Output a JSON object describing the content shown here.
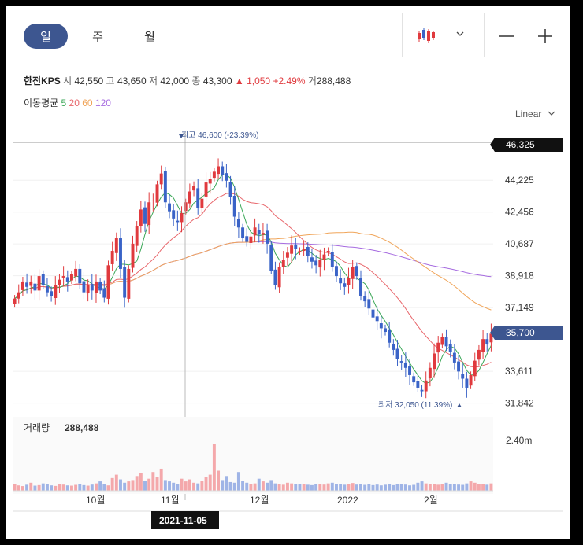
{
  "tabs": [
    {
      "label": "일",
      "active": true
    },
    {
      "label": "주",
      "active": false
    },
    {
      "label": "월",
      "active": false
    }
  ],
  "toolbar": {
    "chart_type_icon": "candlestick-icon",
    "dropdown_icon": "chevron-down-icon",
    "zoom_out": "—",
    "zoom_in": "+"
  },
  "quote": {
    "name": "한전KPS",
    "open_label": "시",
    "open": "42,550",
    "high_label": "고",
    "high": "43,650",
    "low_label": "저",
    "low": "42,000",
    "close_label": "종",
    "close": "43,300",
    "change": "▲ 1,050",
    "change_pct": "+2.49%",
    "volume_label": "거",
    "volume": "288,488"
  },
  "ma_legend": {
    "label": "이동평균",
    "items": [
      {
        "period": "5",
        "color": "#3aa757"
      },
      {
        "period": "20",
        "color": "#e8676c"
      },
      {
        "period": "60",
        "color": "#f0a55a"
      },
      {
        "period": "120",
        "color": "#a66be0"
      }
    ]
  },
  "scale_selector": "Linear",
  "chart_data": {
    "type": "candlestick",
    "y_ticks": [
      "44,225",
      "42,456",
      "40,687",
      "38,918",
      "37,149",
      "33,611",
      "31,842"
    ],
    "ylim": [
      31300,
      46900
    ],
    "current_price_label": "46,325",
    "last_price_label": "35,700",
    "x_labels": [
      "10월",
      "11월",
      "12월",
      "2022",
      "2월"
    ],
    "crosshair_date": "2021-11-05",
    "high_annotation": "최고 46,600 (-23.39%)",
    "low_annotation": "최저 32,050 (11.39%)",
    "volume_label": "거래량",
    "volume_value": "288,488",
    "volume_tick": "2.40m",
    "colors": {
      "up": "#e03a3e",
      "down": "#3a63c7",
      "ma5": "#3aa757",
      "ma20": "#e8676c",
      "ma60": "#f0a55a",
      "ma120": "#a66be0"
    },
    "closes": [
      37650,
      38000,
      38600,
      38300,
      38600,
      38100,
      38900,
      38400,
      38000,
      37800,
      38400,
      38700,
      38900,
      38600,
      39000,
      39300,
      38500,
      38000,
      38400,
      38100,
      38600,
      38100,
      37700,
      39500,
      40300,
      41000,
      39300,
      37700,
      39300,
      40700,
      41700,
      42600,
      41800,
      43000,
      43100,
      44000,
      44600,
      43000,
      42500,
      42100,
      41900,
      42400,
      43000,
      43600,
      43900,
      42700,
      43200,
      44100,
      44300,
      44700,
      45000,
      44500,
      44200,
      43300,
      42200,
      41600,
      41000,
      40800,
      41100,
      41600,
      41200,
      41300,
      40700,
      39200,
      38400,
      39400,
      39800,
      40200,
      40600,
      40400,
      40300,
      40400,
      40000,
      39700,
      39500,
      39800,
      40100,
      40300,
      39400,
      38900,
      38500,
      38300,
      38800,
      39400,
      38900,
      37800,
      37500,
      37100,
      36600,
      36400,
      36000,
      35800,
      35200,
      34800,
      34300,
      34100,
      33800,
      33400,
      33000,
      32700,
      32500,
      33100,
      33800,
      34600,
      35200,
      35500,
      35000,
      34700,
      34100,
      33600,
      33200,
      32700,
      33400,
      34200,
      34800,
      35400,
      35100,
      35700
    ],
    "volumes": [
      50,
      40,
      35,
      45,
      60,
      38,
      42,
      55,
      48,
      40,
      36,
      52,
      46,
      40,
      38,
      44,
      50,
      42,
      38,
      46,
      55,
      70,
      48,
      40,
      95,
      120,
      85,
      60,
      70,
      80,
      110,
      130,
      75,
      90,
      140,
      100,
      165,
      80,
      70,
      60,
      50,
      90,
      70,
      85,
      60,
      55,
      75,
      100,
      120,
      350,
      150,
      80,
      110,
      65,
      60,
      140,
      75,
      60,
      50,
      55,
      90,
      70,
      60,
      80,
      55,
      50,
      45,
      60,
      55,
      50,
      48,
      52,
      45,
      42,
      50,
      48,
      46,
      55,
      60,
      50,
      48,
      45,
      52,
      58,
      46,
      50,
      44,
      48,
      42,
      46,
      40,
      45,
      50,
      42,
      48,
      52,
      46,
      40,
      44,
      60,
      70,
      55,
      50,
      48,
      45,
      52,
      60,
      50,
      48,
      46,
      44,
      55,
      70,
      60,
      50,
      48,
      45,
      55
    ]
  }
}
